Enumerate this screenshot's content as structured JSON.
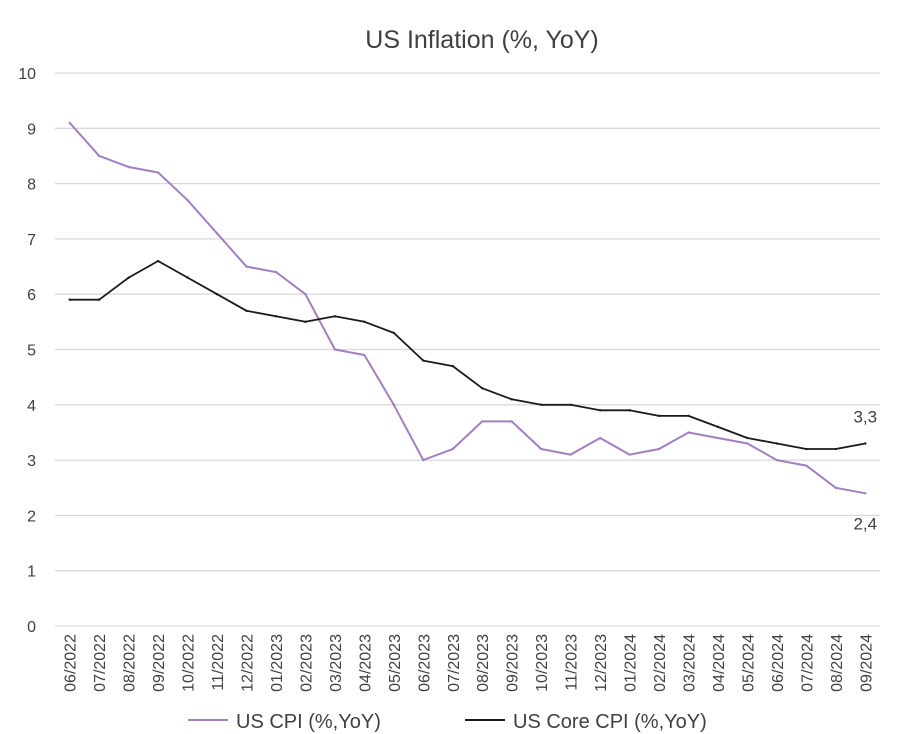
{
  "chart_data": {
    "type": "line",
    "title": "US Inflation (%, YoY)",
    "xlabel": "",
    "ylabel": "",
    "ylim": [
      0,
      10
    ],
    "yticks": [
      "0",
      "1",
      "2",
      "3",
      "4",
      "5",
      "6",
      "7",
      "8",
      "9",
      "10"
    ],
    "grid": true,
    "legend_position": "bottom",
    "categories": [
      "06/2022",
      "07/2022",
      "08/2022",
      "09/2022",
      "10/2022",
      "11/2022",
      "12/2022",
      "01/2023",
      "02/2023",
      "03/2023",
      "04/2023",
      "05/2023",
      "06/2023",
      "07/2023",
      "08/2023",
      "09/2023",
      "10/2023",
      "11/2023",
      "12/2023",
      "01/2024",
      "02/2024",
      "03/2024",
      "04/2024",
      "05/2024",
      "06/2024",
      "07/2024",
      "08/2024",
      "09/2024"
    ],
    "series": [
      {
        "name": "US CPI (%,YoY)",
        "color": "#a27fc1",
        "values": [
          9.1,
          8.5,
          8.3,
          8.2,
          7.7,
          7.1,
          6.5,
          6.4,
          6.0,
          5.0,
          4.9,
          4.0,
          3.0,
          3.2,
          3.7,
          3.7,
          3.2,
          3.1,
          3.4,
          3.1,
          3.2,
          3.5,
          3.4,
          3.3,
          3.0,
          2.9,
          2.5,
          2.4
        ],
        "end_label": "2,4"
      },
      {
        "name": "US Core CPI (%,YoY)",
        "color": "#1a1a1a",
        "values": [
          5.9,
          5.9,
          6.3,
          6.6,
          6.3,
          6.0,
          5.7,
          5.6,
          5.5,
          5.6,
          5.5,
          5.3,
          4.8,
          4.7,
          4.3,
          4.1,
          4.0,
          4.0,
          3.9,
          3.9,
          3.8,
          3.8,
          3.6,
          3.4,
          3.3,
          3.2,
          3.2,
          3.3
        ],
        "end_label": "3,3"
      }
    ]
  }
}
